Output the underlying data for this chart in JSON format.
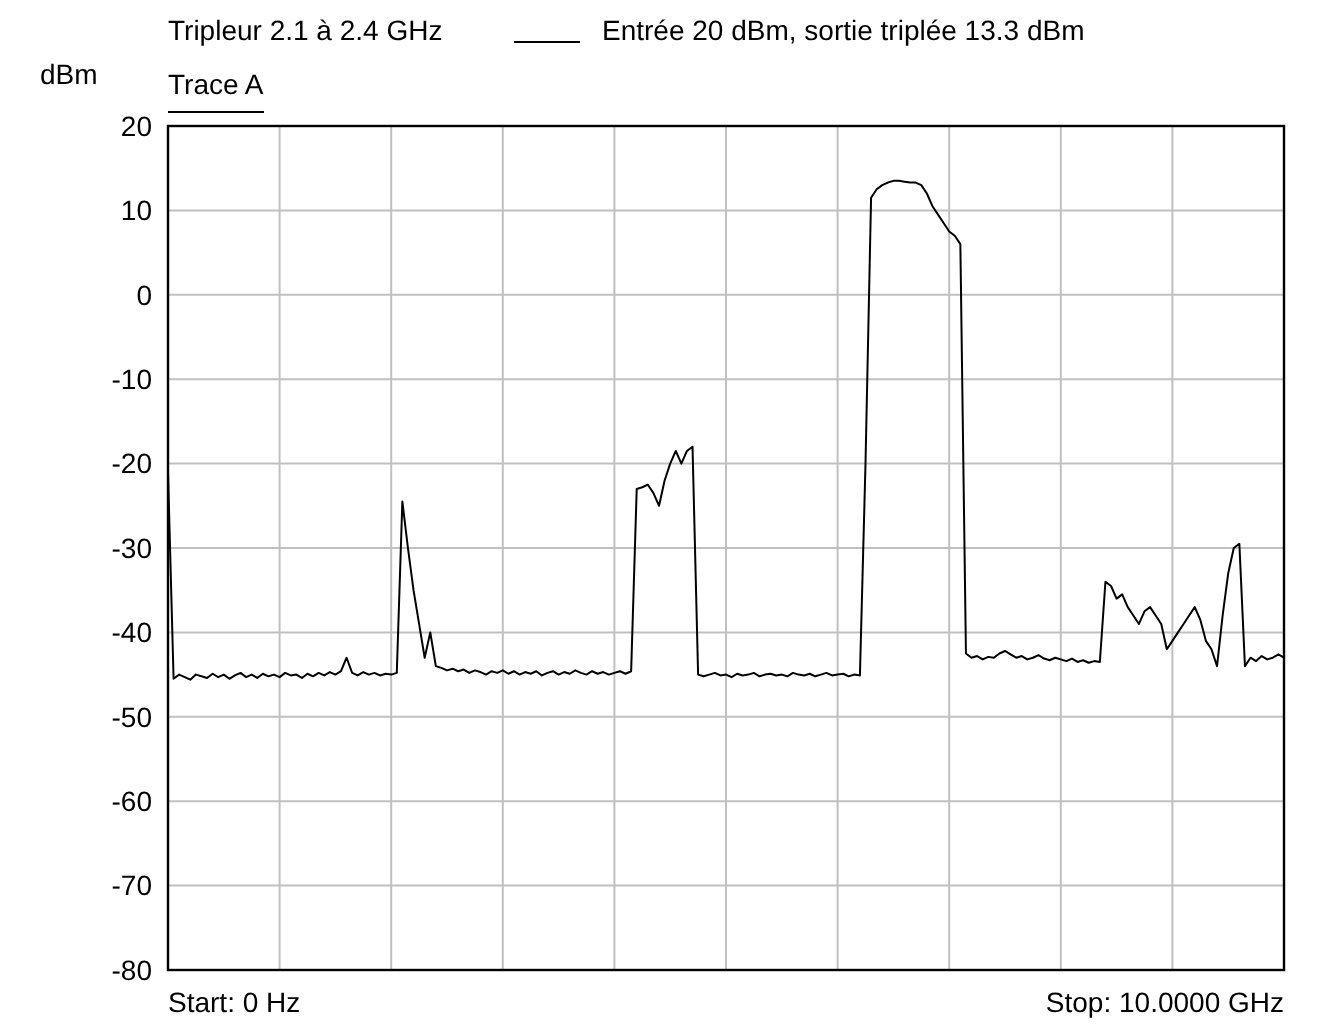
{
  "chart_data": {
    "type": "line",
    "title": "Tripleur 2.1 à 2.4 GHz",
    "subtitle": "Entrée 20 dBm, sortie triplée 13.3 dBm",
    "ylabel": "dBm",
    "annotations": [
      "Start: 0 Hz",
      "Stop: 10.0000 GHz"
    ],
    "categories": [
      null,
      null,
      null,
      null,
      null,
      null,
      null,
      null,
      null,
      null,
      null,
      null,
      null,
      null,
      null,
      null,
      null,
      null,
      null,
      null,
      null,
      null,
      null,
      null,
      null,
      null,
      null,
      null,
      null,
      null,
      null,
      null,
      null,
      null,
      null,
      null,
      null,
      null,
      null,
      null,
      null,
      null,
      null,
      null,
      null,
      null,
      null,
      null,
      null,
      null,
      null,
      null,
      null,
      null,
      null,
      null,
      null,
      null,
      null,
      null,
      null,
      null,
      null,
      null,
      null,
      null,
      null,
      null,
      null,
      null,
      null,
      null,
      null,
      null,
      null,
      null,
      null,
      null,
      null,
      null,
      null,
      null,
      null,
      null,
      null,
      null,
      null,
      null,
      null,
      null,
      null,
      null,
      null,
      null,
      null,
      null,
      null,
      null,
      null,
      null,
      null,
      null,
      null,
      null,
      null,
      null,
      null,
      null,
      null,
      null,
      null,
      null,
      null,
      null,
      null,
      null,
      null,
      null,
      null,
      null,
      null,
      null,
      null,
      null,
      null,
      null,
      null,
      null,
      null,
      null,
      null,
      null,
      null,
      null,
      null,
      null,
      null,
      null,
      null,
      null,
      null,
      null,
      null,
      null,
      null,
      null,
      null,
      null,
      null,
      null,
      null,
      null,
      null,
      null,
      null,
      null,
      null,
      null,
      null,
      null,
      null,
      null,
      null,
      null,
      null,
      null,
      null,
      null,
      null,
      null,
      null,
      null,
      null,
      null,
      null,
      null,
      null,
      null,
      null,
      null,
      null,
      null,
      null,
      null,
      null,
      null,
      null,
      null,
      null,
      null,
      null,
      null,
      null,
      null,
      null,
      null,
      null,
      null,
      null,
      null,
      null
    ],
    "ylim": [
      -80,
      20
    ],
    "yticks": [
      -80,
      -70,
      -60,
      -50,
      -40,
      -30,
      -20,
      -10,
      0,
      10,
      20
    ],
    "tick_labels": "y",
    "grid": true,
    "line_style": "solid",
    "marker": "none",
    "series": [
      {
        "name": "Trace A",
        "color": "#000000",
        "values": [
          -21,
          -45.5,
          -45,
          -45.3,
          -45.6,
          -45,
          -45.2,
          -45.4,
          -44.9,
          -45.3,
          -45,
          -45.5,
          -45.1,
          -44.8,
          -45.3,
          -45,
          -45.4,
          -44.9,
          -45.2,
          -45,
          -45.3,
          -44.8,
          -45.1,
          -45,
          -45.4,
          -44.9,
          -45.2,
          -44.8,
          -45.1,
          -44.7,
          -45,
          -44.6,
          -43,
          -44.8,
          -45.1,
          -44.7,
          -45,
          -44.8,
          -45.1,
          -44.9,
          -45,
          -44.8,
          -24.5,
          -30,
          -35,
          -39,
          -43,
          -40,
          -44,
          -44.2,
          -44.5,
          -44.3,
          -44.6,
          -44.4,
          -44.8,
          -44.5,
          -44.7,
          -45,
          -44.6,
          -44.8,
          -44.5,
          -44.9,
          -44.6,
          -45,
          -44.7,
          -44.9,
          -44.6,
          -45.1,
          -44.8,
          -44.6,
          -45,
          -44.7,
          -44.9,
          -44.5,
          -44.8,
          -45,
          -44.6,
          -44.9,
          -44.7,
          -45,
          -44.8,
          -44.6,
          -44.9,
          -44.6,
          -23,
          -22.8,
          -22.5,
          -23.5,
          -25,
          -22,
          -20,
          -18.5,
          -20,
          -18.5,
          -18,
          -45,
          -45.2,
          -45,
          -44.8,
          -45.1,
          -45,
          -45.3,
          -44.9,
          -45.1,
          -45,
          -44.8,
          -45.2,
          -45,
          -44.9,
          -45.1,
          -45,
          -45.2,
          -44.8,
          -45,
          -45.1,
          -44.9,
          -45.2,
          -45,
          -44.8,
          -45.1,
          -45,
          -44.9,
          -45.2,
          -45,
          -45.1,
          -20,
          11.5,
          12.5,
          13,
          13.3,
          13.5,
          13.5,
          13.4,
          13.3,
          13.3,
          13,
          12,
          10.5,
          9.5,
          8.5,
          7.5,
          7,
          6,
          -42.5,
          -43,
          -42.8,
          -43.2,
          -42.9,
          -43,
          -42.5,
          -42.2,
          -42.6,
          -43,
          -42.8,
          -43.2,
          -43,
          -42.7,
          -43.1,
          -43.3,
          -43,
          -43.2,
          -43.4,
          -43.1,
          -43.5,
          -43.3,
          -43.6,
          -43.4,
          -43.5,
          -34,
          -34.5,
          -36,
          -35.5,
          -37,
          -38,
          -39,
          -37.5,
          -37,
          -38,
          -39,
          -42,
          -41,
          -40,
          -39,
          -38,
          -37,
          -38.5,
          -41,
          -42,
          -44,
          -38,
          -33,
          -30,
          -29.5,
          -44,
          -43,
          -43.4,
          -42.8,
          -43.2,
          -43,
          -42.6,
          -43
        ]
      }
    ]
  }
}
